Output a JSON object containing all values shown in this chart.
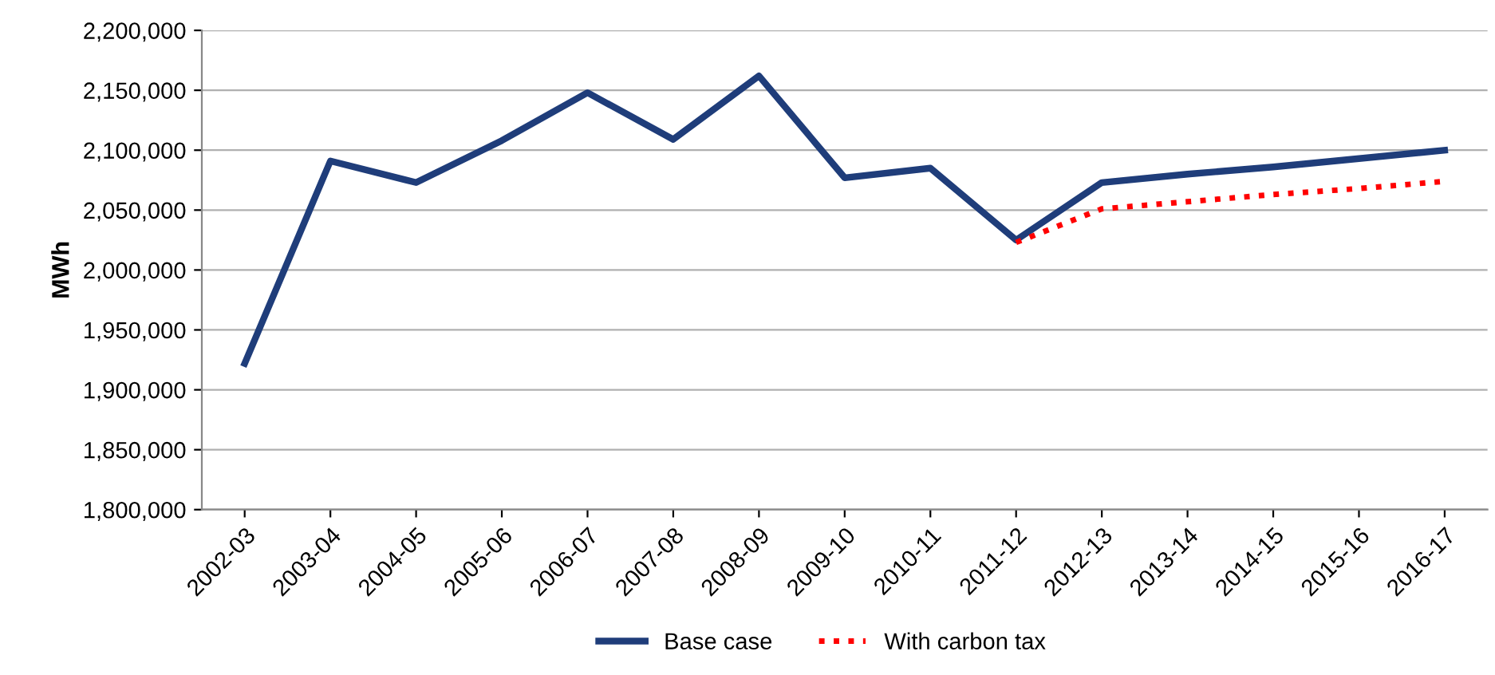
{
  "chart_data": {
    "type": "line",
    "ylabel": "MWh",
    "categories": [
      "2002-03",
      "2003-04",
      "2004-05",
      "2005-06",
      "2006-07",
      "2007-08",
      "2008-09",
      "2009-10",
      "2010-11",
      "2011-12",
      "2012-13",
      "2013-14",
      "2014-15",
      "2015-16",
      "2016-17"
    ],
    "series": [
      {
        "name": "Base case",
        "color": "#1f3d7a",
        "line_style": "solid",
        "values": [
          1922000,
          2091000,
          2073000,
          2108000,
          2148000,
          2109000,
          2162000,
          2077000,
          2085000,
          2025000,
          2073000,
          2080000,
          2086000,
          2093000,
          2100000
        ]
      },
      {
        "name": "With carbon tax",
        "color": "#ff0000",
        "line_style": "dotted",
        "values": [
          null,
          null,
          null,
          null,
          null,
          null,
          null,
          null,
          null,
          2023000,
          2051000,
          2057000,
          2063000,
          2068000,
          2074000
        ]
      }
    ],
    "ylim": [
      1800000,
      2200000
    ],
    "yticks": [
      {
        "value": 1800000,
        "label": "1,800,000"
      },
      {
        "value": 1850000,
        "label": "1,850,000"
      },
      {
        "value": 1900000,
        "label": "1,900,000"
      },
      {
        "value": 1950000,
        "label": "1,950,000"
      },
      {
        "value": 2000000,
        "label": "2,000,000"
      },
      {
        "value": 2050000,
        "label": "2,050,000"
      },
      {
        "value": 2100000,
        "label": "2,100,000"
      },
      {
        "value": 2150000,
        "label": "2,150,000"
      },
      {
        "value": 2200000,
        "label": "2,200,000"
      }
    ],
    "grid": "y",
    "legend": "bottom",
    "marker": "none"
  }
}
